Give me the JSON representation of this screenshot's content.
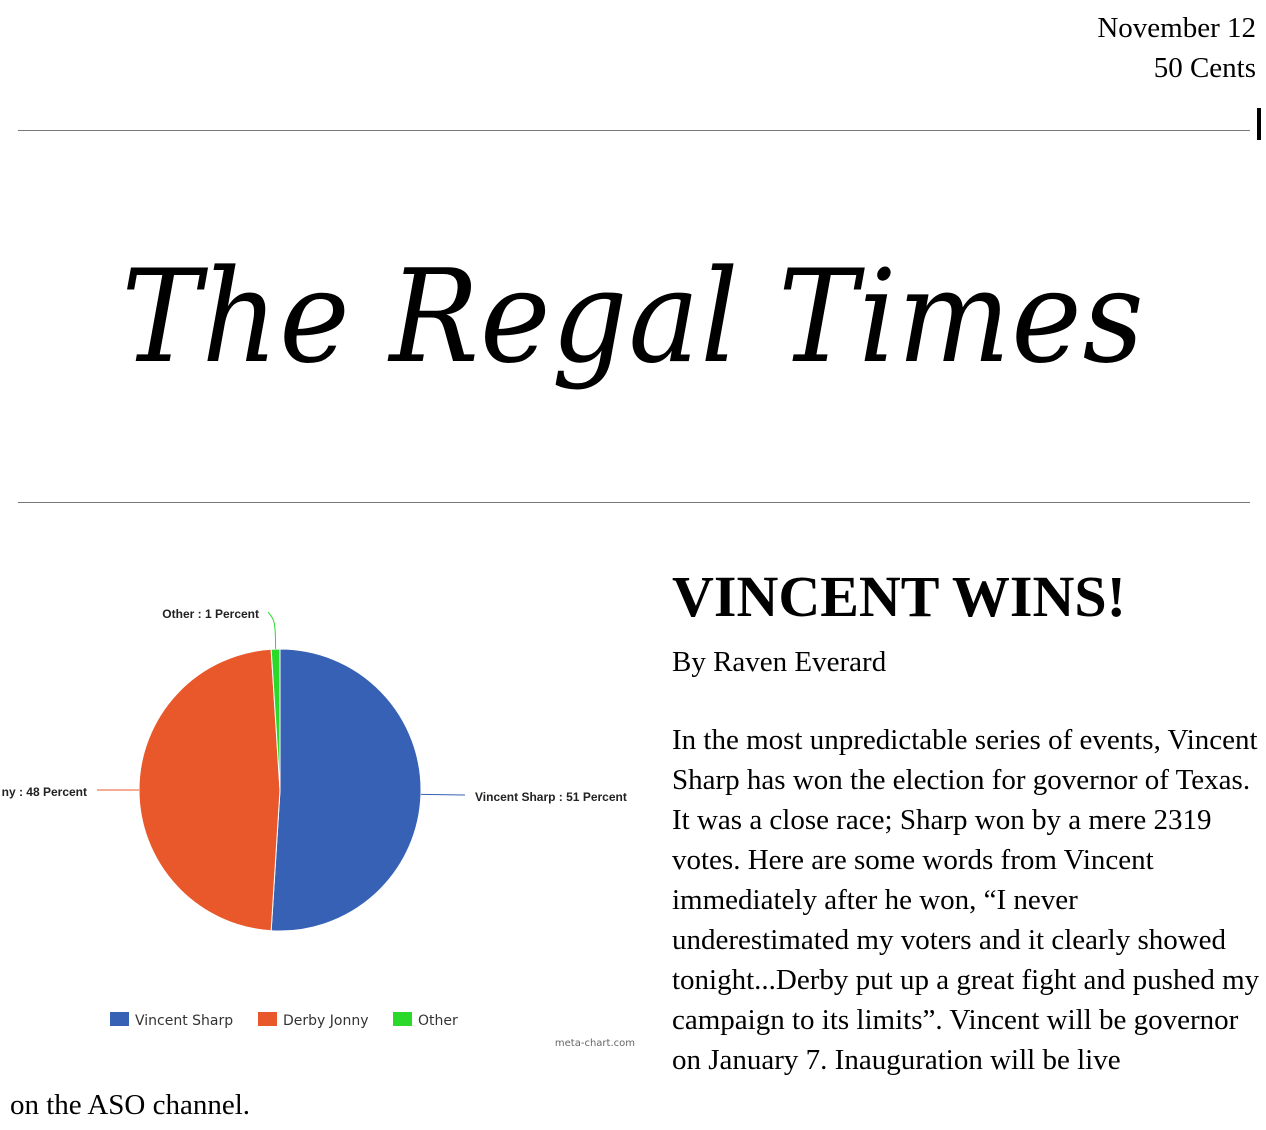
{
  "header": {
    "date": "November 12",
    "price": "50 Cents"
  },
  "masthead": {
    "title": "The Regal Times"
  },
  "chart_data": {
    "type": "pie",
    "categories": [
      "Vincent Sharp",
      "Derby Jonny",
      "Other"
    ],
    "values": [
      51,
      48,
      1
    ],
    "unit": "Percent",
    "slice_labels": [
      "Vincent Sharp : 51 Percent",
      "ny : 48 Percent",
      "Other : 1 Percent"
    ],
    "colors": [
      "#3661b4",
      "#e8582b",
      "#2bd92b"
    ],
    "legend": [
      "Vincent Sharp",
      "Derby Jonny",
      "Other"
    ],
    "legend_placement": "bottom",
    "credit": "meta-chart.com"
  },
  "article": {
    "headline": "VINCENT WINS!",
    "byline": "By Raven Everard",
    "body": "In the most unpredictable series of events, Vincent Sharp has won the election for governor of Texas. It was a close race; Sharp won by a mere 2319 votes. Here are some words from Vincent immediately after he won, “I never underestimated my voters and it clearly showed tonight...Derby put up a great fight and pushed my campaign to its limits”. Vincent will be governor on January 7. Inauguration will be live",
    "continuation": "on the ASO channel."
  }
}
